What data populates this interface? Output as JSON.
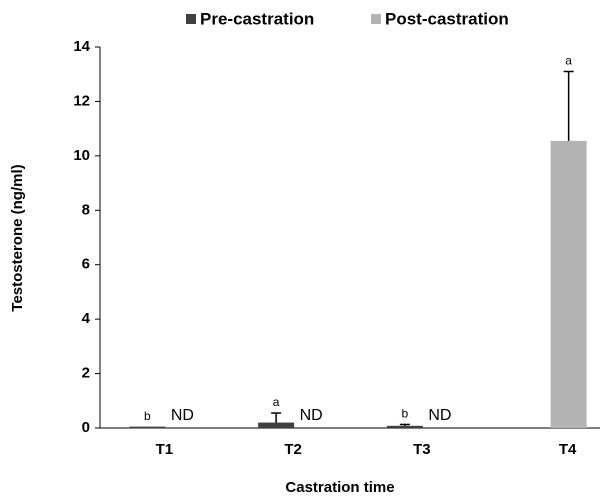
{
  "chart_data": {
    "type": "bar",
    "xlabel": "Castration time",
    "ylabel": "Testosterone (ng/ml)",
    "categories": [
      "T1",
      "T2",
      "T3",
      "T4"
    ],
    "series": [
      {
        "name": "Pre-castration",
        "color": "#404040",
        "values": [
          0.05,
          0.2,
          0.08,
          null
        ],
        "errors": [
          0,
          0.35,
          0.05,
          null
        ],
        "labels": [
          "b",
          "a",
          "b",
          null
        ]
      },
      {
        "name": "Post-castration",
        "color": "#b3b3b3",
        "values": [
          null,
          null,
          null,
          10.55
        ],
        "errors": [
          null,
          null,
          null,
          2.55
        ],
        "labels": [
          "ND",
          "ND",
          "ND",
          "a"
        ]
      }
    ],
    "ylim": [
      0,
      14
    ],
    "yticks": [
      0,
      2,
      4,
      6,
      8,
      10,
      12,
      14
    ],
    "grid": false,
    "legend": "top"
  }
}
